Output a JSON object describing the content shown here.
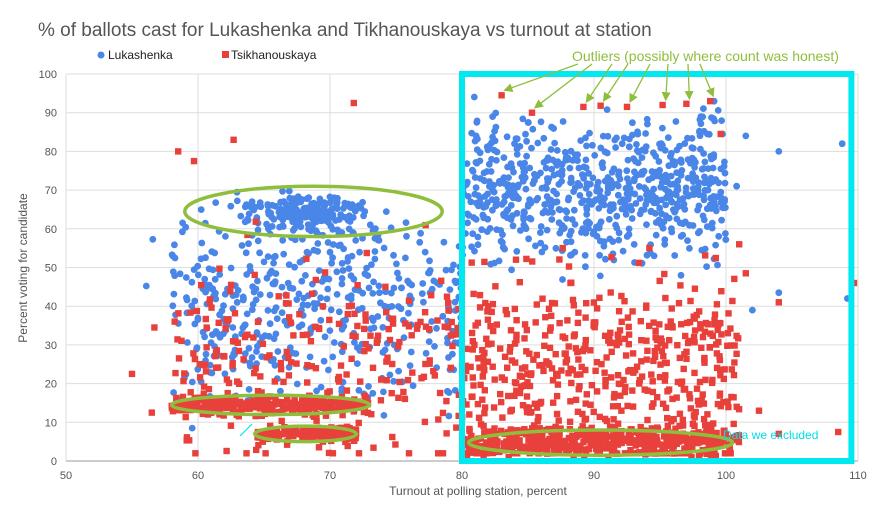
{
  "chart_data": {
    "type": "scatter",
    "title": "% of ballots cast for Lukashenka and Tikhanouskaya vs turnout at station",
    "xlabel": "Turnout  at polling  station, percent",
    "ylabel": "Percent voting for candidate",
    "xlim": [
      50,
      110
    ],
    "ylim": [
      0,
      100
    ],
    "xticks": [
      "50",
      "60",
      "70",
      "80",
      "90",
      "100",
      "110"
    ],
    "yticks": [
      "0",
      "10",
      "20",
      "30",
      "40",
      "50",
      "60",
      "70",
      "80",
      "90",
      "100"
    ],
    "grid": true,
    "legend_position": "top-left",
    "series": [
      {
        "name": "Lukashenka",
        "color": "#4a86e8",
        "marker": "circle"
      },
      {
        "name": "Tsikhanouskaya",
        "color": "#e8403a",
        "marker": "square"
      }
    ],
    "annotations": {
      "outliers_label": "Outliers (possibly where count was honest)",
      "outliers_color": "#8fbe3c",
      "outlier_points": [
        [
          83,
          94.5
        ],
        [
          85.3,
          90
        ],
        [
          89.2,
          91.5
        ],
        [
          90.5,
          91.8
        ],
        [
          92.5,
          91.5
        ],
        [
          95.2,
          92
        ],
        [
          97,
          92.3
        ],
        [
          98.8,
          93
        ]
      ],
      "excluded_label": "Data we excluded",
      "excluded_color": "#00e8f0",
      "excluded_region": {
        "x": [
          80,
          109.5
        ],
        "y": [
          0,
          100
        ]
      },
      "clusters": [
        {
          "series": "Lukashenka",
          "x": [
            59,
            78.5
          ],
          "y": [
            58,
            71
          ]
        },
        {
          "series": "Tsikhanouskaya",
          "x": [
            58,
            73
          ],
          "y": [
            12,
            17
          ]
        },
        {
          "series": "Tsikhanouskaya",
          "x": [
            64.3,
            72
          ],
          "y": [
            5,
            9
          ]
        },
        {
          "series": "Tsikhanouskaya",
          "x": [
            80.5,
            100.5
          ],
          "y": [
            1.5,
            8
          ]
        }
      ]
    }
  }
}
